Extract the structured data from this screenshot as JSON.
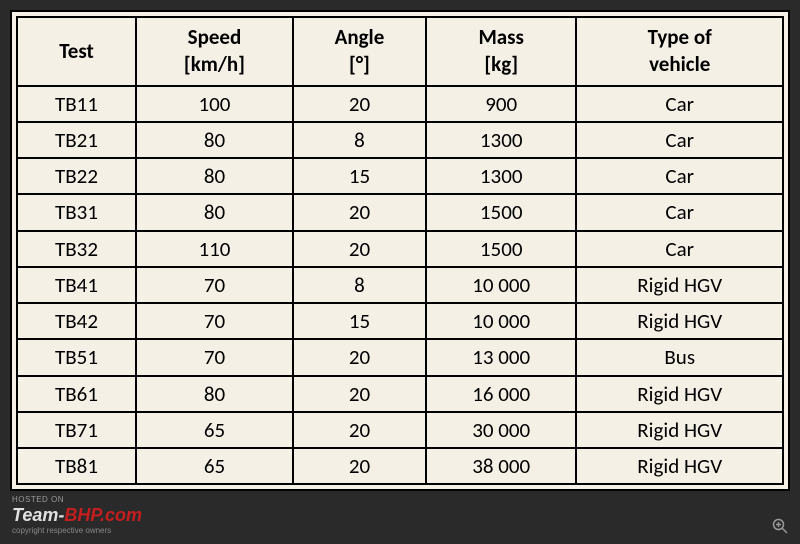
{
  "table": {
    "columns": [
      {
        "line1": "Test",
        "line2": ""
      },
      {
        "line1": "Speed",
        "line2": "[km/h]"
      },
      {
        "line1": "Angle",
        "line2": "[°]"
      },
      {
        "line1": "Mass",
        "line2": "[kg]"
      },
      {
        "line1": "Type of",
        "line2": "vehicle"
      }
    ],
    "rows": [
      [
        "TB11",
        "100",
        "20",
        "900",
        "Car"
      ],
      [
        "TB21",
        "80",
        "8",
        "1300",
        "Car"
      ],
      [
        "TB22",
        "80",
        "15",
        "1300",
        "Car"
      ],
      [
        "TB31",
        "80",
        "20",
        "1500",
        "Car"
      ],
      [
        "TB32",
        "110",
        "20",
        "1500",
        "Car"
      ],
      [
        "TB41",
        "70",
        "8",
        "10 000",
        "Rigid HGV"
      ],
      [
        "TB42",
        "70",
        "15",
        "10 000",
        "Rigid HGV"
      ],
      [
        "TB51",
        "70",
        "20",
        "13 000",
        "Bus"
      ],
      [
        "TB61",
        "80",
        "20",
        "16 000",
        "Rigid HGV"
      ],
      [
        "TB71",
        "65",
        "20",
        "30 000",
        "Rigid HGV"
      ],
      [
        "TB81",
        "65",
        "20",
        "38 000",
        "Rigid HGV"
      ]
    ],
    "background_color": "#f5f0e6",
    "border_color": "#000000",
    "text_color": "#000000",
    "header_fontsize": 21,
    "cell_fontsize": 21
  },
  "footer": {
    "hosted_text": "HOSTED ON",
    "brand_team": "Team-",
    "brand_bhp": "BHP",
    "brand_com": ".com",
    "copyright": "copyright respective owners"
  },
  "page_background": "#2a2a2a"
}
